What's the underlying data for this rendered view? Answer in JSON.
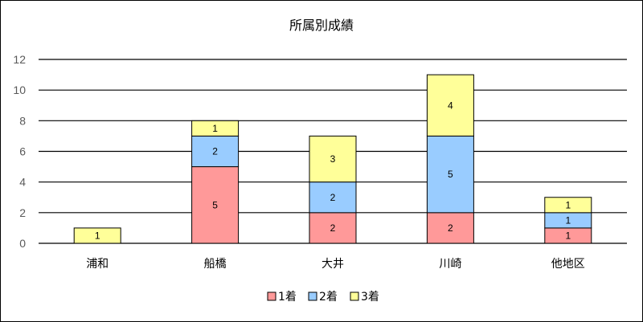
{
  "chart_data": {
    "type": "bar",
    "stacked": true,
    "title": "所属別成績",
    "xlabel": "",
    "ylabel": "",
    "categories": [
      "浦和",
      "船橋",
      "大井",
      "川崎",
      "他地区"
    ],
    "series": [
      {
        "name": "1着",
        "color": "#ff9999",
        "values": [
          0,
          5,
          2,
          2,
          1
        ]
      },
      {
        "name": "2着",
        "color": "#99ccff",
        "values": [
          0,
          2,
          2,
          5,
          1
        ]
      },
      {
        "name": "3着",
        "color": "#ffff99",
        "values": [
          1,
          1,
          3,
          4,
          1
        ]
      }
    ],
    "ylim": [
      0,
      12
    ],
    "yticks": [
      0,
      2,
      4,
      6,
      8,
      10,
      12
    ],
    "grid": true,
    "legend_position": "bottom"
  }
}
